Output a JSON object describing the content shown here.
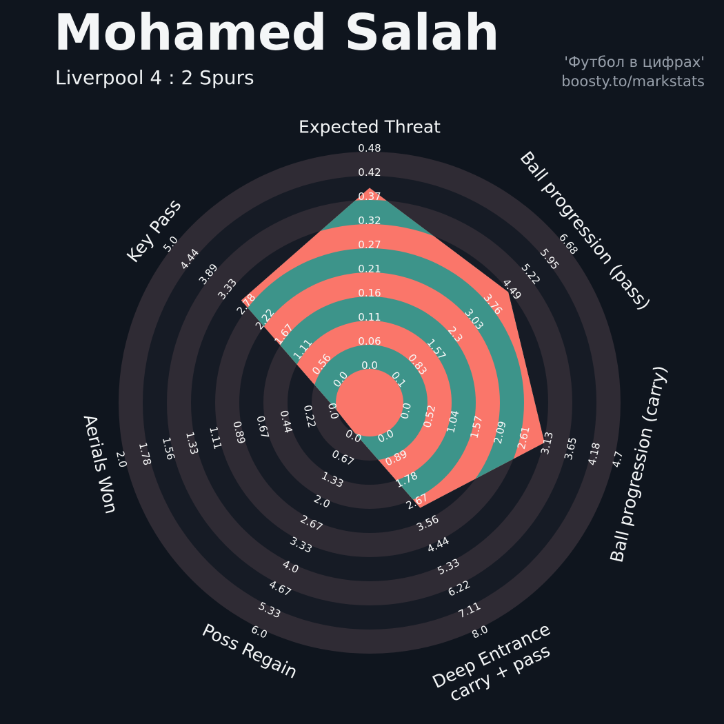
{
  "header": {
    "title": "Mohamed Salah",
    "subtitle": "Liverpool 4 : 2 Spurs",
    "credit_line1": "'Футбол в цифрах'",
    "credit_line2": "boosty.to/markstats"
  },
  "chart_data": {
    "type": "radar",
    "num_rings": 9,
    "legend_position": "none",
    "grid": "concentric-rings",
    "colors": {
      "background": "#0f151e",
      "bg_ring_dark": "#161b25",
      "bg_ring_light": "#2f2b34",
      "radar_fill": "#fa766a",
      "ring_fill": "#3d948a",
      "tick_text": "#f7f8f8",
      "label_text": "#f3f5f6",
      "credit_text": "#98a0ab"
    },
    "axes": [
      {
        "label": "Expected Threat",
        "ticks": [
          "0.0",
          "0.06",
          "0.11",
          "0.16",
          "0.21",
          "0.27",
          "0.32",
          "0.37",
          "0.42",
          "0.48"
        ],
        "range": [
          0.0,
          0.48
        ],
        "value": 0.4
      },
      {
        "label": "Ball progression (pass)",
        "ticks": [
          "0.1",
          "0.83",
          "1.57",
          "2.3",
          "3.03",
          "3.76",
          "4.49",
          "5.22",
          "5.95",
          "6.68"
        ],
        "range": [
          0.1,
          6.68
        ],
        "value": 4.45
      },
      {
        "label": "Ball progression (carry)",
        "ticks": [
          "0.0",
          "0.52",
          "1.04",
          "1.57",
          "2.09",
          "2.61",
          "3.13",
          "3.65",
          "4.18",
          "4.7"
        ],
        "range": [
          0.0,
          4.7
        ],
        "value": 3.15
      },
      {
        "label": "Deep Entrance carry + pass",
        "label_lines": [
          "Deep Entrance",
          "carry + pass"
        ],
        "ticks": [
          "0.0",
          "0.89",
          "1.78",
          "2.67",
          "3.56",
          "4.44",
          "5.33",
          "6.22",
          "7.11",
          "8.0"
        ],
        "range": [
          0.0,
          8.0
        ],
        "value": 3.05
      },
      {
        "label": "Poss Regain",
        "ticks": [
          "0.0",
          "0.67",
          "1.33",
          "2.0",
          "2.67",
          "3.33",
          "4.0",
          "4.67",
          "5.33",
          "6.0"
        ],
        "range": [
          0.0,
          6.0
        ],
        "value": 0.0
      },
      {
        "label": "Aerials Won",
        "ticks": [
          "0.0",
          "0.22",
          "0.44",
          "0.67",
          "0.89",
          "1.11",
          "1.33",
          "1.56",
          "1.78",
          "2.0"
        ],
        "range": [
          0.0,
          2.0
        ],
        "value": 0.0
      },
      {
        "label": "Key Pass",
        "ticks": [
          "0.0",
          "0.56",
          "1.11",
          "1.67",
          "2.22",
          "2.78",
          "3.33",
          "3.89",
          "4.44",
          "5.0"
        ],
        "range": [
          0.0,
          5.0
        ],
        "value": 3.0
      }
    ]
  }
}
